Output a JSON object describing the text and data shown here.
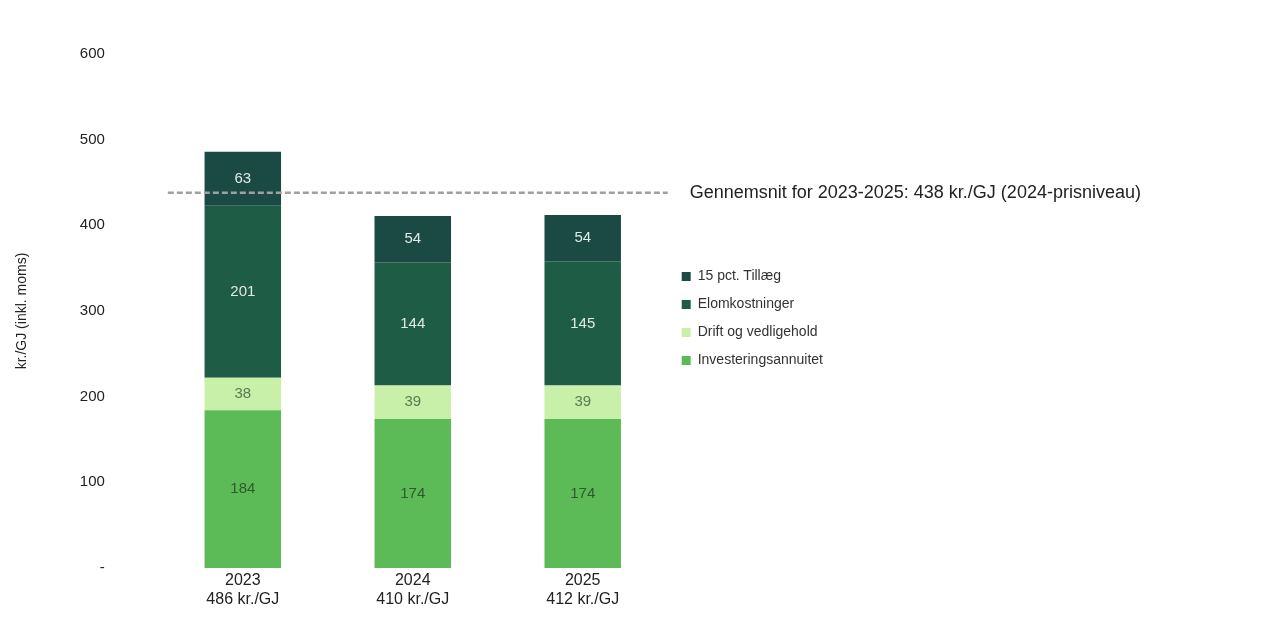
{
  "chart_data": {
    "type": "bar",
    "stacked": true,
    "ylabel": "kr./GJ (inkl. moms)",
    "categories": [
      "2023\n486 kr./GJ",
      "2024\n410 kr./GJ",
      "2025\n412 kr./GJ"
    ],
    "series": [
      {
        "name": "Investeringsannuitet",
        "color": "#5dbb57",
        "values": [
          184,
          174,
          174
        ]
      },
      {
        "name": "Drift og vedligehold",
        "color": "#c8f0a8",
        "values": [
          38,
          39,
          39
        ]
      },
      {
        "name": "Elomkostninger",
        "color": "#1e5c45",
        "values": [
          201,
          144,
          145
        ]
      },
      {
        "name": "15 pct. Tillæg",
        "color": "#1b4a45",
        "values": [
          63,
          54,
          54
        ]
      }
    ],
    "ylim": [
      0,
      600
    ],
    "yticks": [
      {
        "value": 0,
        "label": "-"
      },
      100,
      200,
      300,
      400,
      500,
      600
    ],
    "grid": false,
    "legend": "right",
    "data_labels": true,
    "ref_lines": [
      {
        "axis": "y",
        "value": 438,
        "label": "Gennemsnit for 2023-2025: 438 kr./GJ (2024-prisniveau)",
        "color": "#a0a0a0",
        "line_style": "dashed"
      }
    ]
  }
}
